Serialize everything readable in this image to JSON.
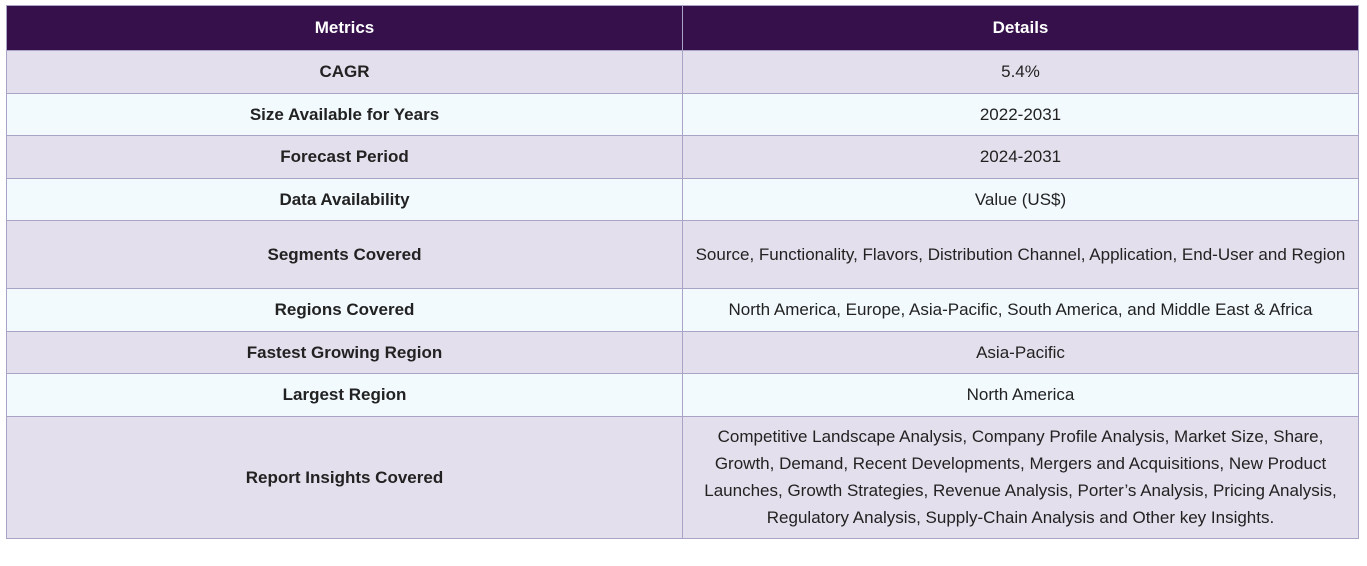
{
  "table": {
    "headers": {
      "metrics": "Metrics",
      "details": "Details"
    },
    "rows": [
      {
        "metric": "CAGR",
        "detail": "5.4%"
      },
      {
        "metric": "Size Available for Years",
        "detail": "2022-2031"
      },
      {
        "metric": "Forecast Period",
        "detail": "2024-2031"
      },
      {
        "metric": "Data Availability",
        "detail": "Value (US$)"
      },
      {
        "metric": "Segments Covered",
        "detail": "Source, Functionality, Flavors, Distribution Channel, Application, End-User and Region"
      },
      {
        "metric": "Regions Covered",
        "detail": "North America, Europe, Asia-Pacific, South America, and Middle East & Africa"
      },
      {
        "metric": "Fastest Growing Region",
        "detail": "Asia-Pacific"
      },
      {
        "metric": "Largest Region",
        "detail": "North America"
      },
      {
        "metric": "Report Insights Covered",
        "detail": "Competitive Landscape Analysis, Company Profile Analysis, Market Size, Share, Growth, Demand, Recent Developments, Mergers and Acquisitions, New Product Launches, Growth Strategies, Revenue Analysis, Porter’s Analysis, Pricing Analysis, Regulatory Analysis, Supply-Chain Analysis and Other key Insights."
      }
    ]
  },
  "colors": {
    "header_bg": "#36104b",
    "header_text": "#ffffff",
    "row_odd_bg": "#e4dfec",
    "row_even_bg": "#f2fafe",
    "border": "#a9a3c6"
  }
}
